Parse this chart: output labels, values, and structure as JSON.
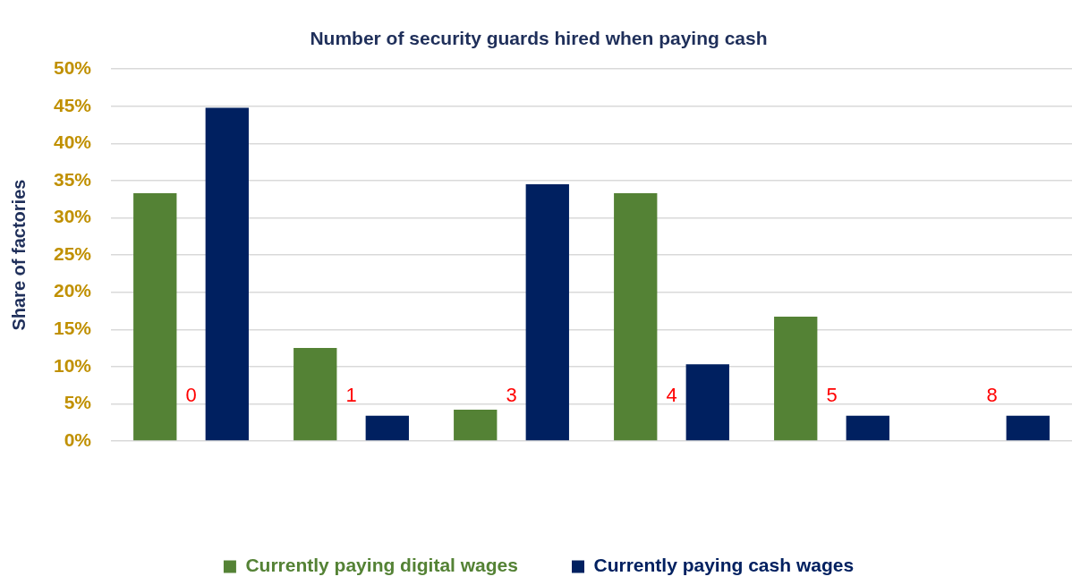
{
  "chart_data": {
    "type": "bar",
    "title": "Number of security guards hired when paying cash",
    "ylabel": "Share of factories",
    "categories": [
      "0",
      "1",
      "3",
      "4",
      "5",
      "8"
    ],
    "series": [
      {
        "name": "Currently paying digital wages",
        "color": "#548235",
        "values": [
          33.3,
          12.5,
          4.2,
          33.3,
          16.7,
          0
        ]
      },
      {
        "name": "Currently paying cash wages",
        "color": "#002060",
        "values": [
          44.8,
          3.4,
          34.5,
          10.3,
          3.4,
          3.4
        ]
      }
    ],
    "ylim": [
      0,
      50
    ],
    "yticks": [
      {
        "value": 0,
        "label": "0%"
      },
      {
        "value": 5,
        "label": "5%"
      },
      {
        "value": 10,
        "label": "10%"
      },
      {
        "value": 15,
        "label": "15%"
      },
      {
        "value": 20,
        "label": "20%"
      },
      {
        "value": 25,
        "label": "25%"
      },
      {
        "value": 30,
        "label": "30%"
      },
      {
        "value": 35,
        "label": "35%"
      },
      {
        "value": 40,
        "label": "40%"
      },
      {
        "value": 45,
        "label": "45%"
      },
      {
        "value": 50,
        "label": "50%"
      }
    ],
    "grid": "y",
    "legend": "bottom"
  }
}
